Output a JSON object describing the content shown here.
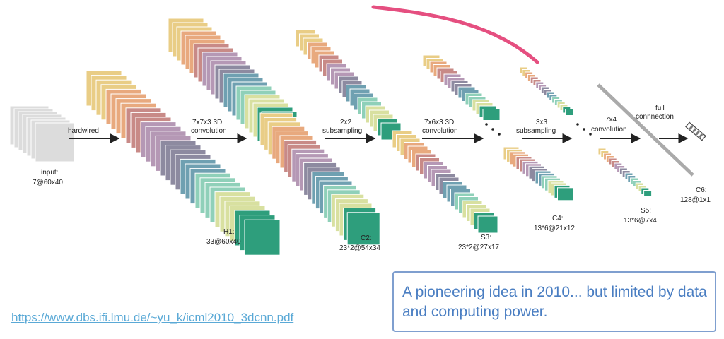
{
  "diagram": {
    "input_label": "input:",
    "input_size": "7@60x40",
    "hardwired": "hardwired",
    "conv1_line1": "7x7x3 3D",
    "conv1_line2": "convolution",
    "h1_label": "H1:",
    "h1_size": "33@60x40",
    "sub1_line1": "2x2",
    "sub1_line2": "subsampling",
    "c2_label": "C2:",
    "c2_size": "23*2@54x34",
    "conv2_line1": "7x6x3 3D",
    "conv2_line2": "convolution",
    "s3_label": "S3:",
    "s3_size": "23*2@27x17",
    "sub2_line1": "3x3",
    "sub2_line2": "subsampling",
    "c4_label": "C4:",
    "c4_size": "13*6@21x12",
    "conv3_line1": "7x4",
    "conv3_line2": "convolution",
    "s5_label": "S5:",
    "s5_size": "13*6@7x4",
    "full_line1": "full",
    "full_line2": "connnection",
    "c6_label": "C6:",
    "c6_size": "128@1x1"
  },
  "colors": {
    "input": "#dcdcdc",
    "palette": [
      "#e9cd86",
      "#e8a97e",
      "#c88a87",
      "#b598b5",
      "#8d8aa0",
      "#6fa0b1",
      "#8fd0b9",
      "#d8e0a0",
      "#2e9e7c"
    ],
    "arrow": "#222222",
    "pointer": "#e0306a",
    "divider": "#aaaaaa"
  },
  "link": {
    "text": "https://www.dbs.ifi.lmu.de/~yu_k/icml2010_3dcnn.pdf"
  },
  "note": {
    "text": "A pioneering idea in 2010... but limited by data and computing power."
  }
}
